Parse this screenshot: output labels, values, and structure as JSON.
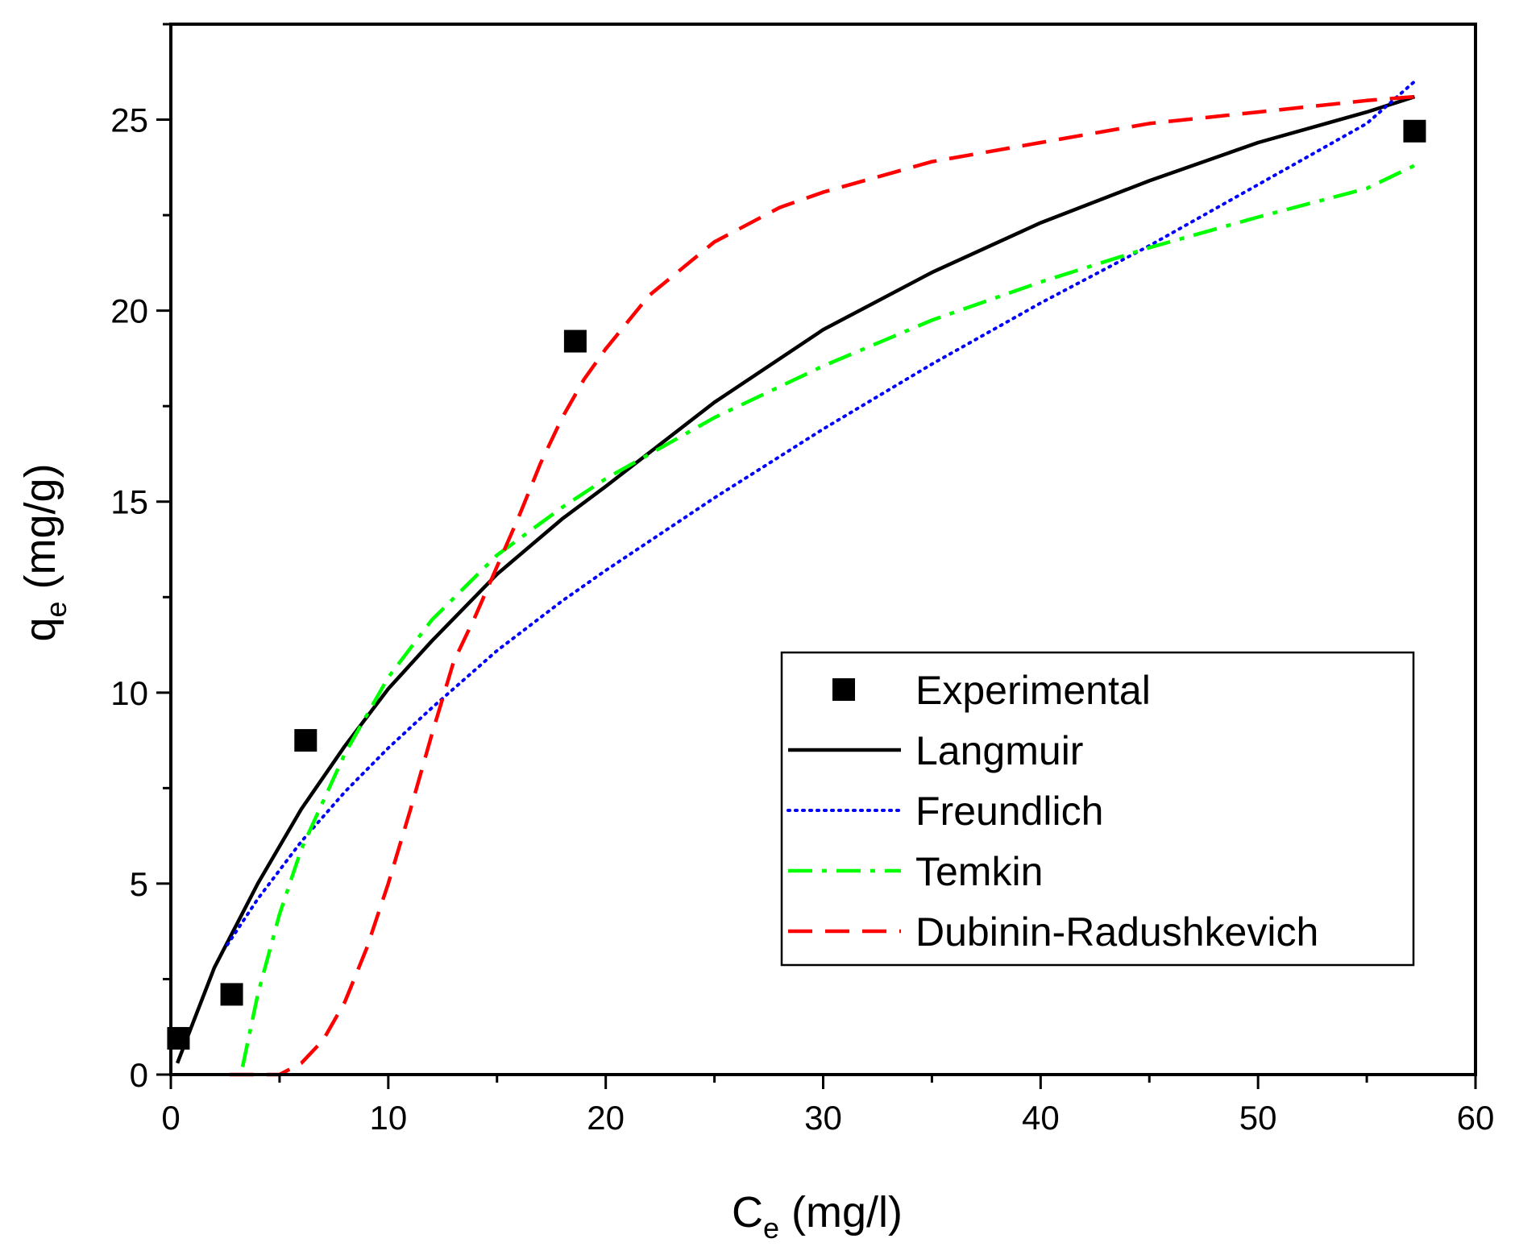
{
  "colors": {
    "experimental": "#000000",
    "langmuir": "#000000",
    "freundlich": "#0000ff",
    "temkin": "#00ff00",
    "dubinin_radushkevich": "#ff0000",
    "axes": "#000000",
    "background": "#ffffff"
  },
  "chart_data": {
    "type": "scatter",
    "title": "",
    "xlabel": {
      "main": "C",
      "sub": "e",
      "rest": " (mg/l)"
    },
    "ylabel": {
      "main": "q",
      "sub": "e",
      "rest": " (mg/g)"
    },
    "xlim": [
      0,
      60
    ],
    "ylim": [
      0,
      27.5
    ],
    "xticks": [
      0,
      10,
      20,
      30,
      40,
      50,
      60
    ],
    "xtick_labels": [
      "0",
      "10",
      "20",
      "30",
      "40",
      "50",
      "60"
    ],
    "yticks": [
      0,
      5,
      10,
      15,
      20,
      25
    ],
    "ytick_labels": [
      "0",
      "5",
      "10",
      "15",
      "20",
      "25"
    ],
    "grid": false,
    "legend_position": "bottom-right",
    "series": [
      {
        "name": "Experimental",
        "kind": "scatter",
        "marker": "square",
        "color": "#000000",
        "x": [
          0.35,
          2.8,
          6.2,
          18.6,
          57.2
        ],
        "y": [
          0.95,
          2.1,
          8.75,
          19.2,
          24.7
        ]
      },
      {
        "name": "Langmuir",
        "kind": "line",
        "dash": "solid",
        "color": "#000000",
        "x": [
          0.3,
          2,
          4,
          6,
          8,
          10,
          12,
          15,
          18,
          20,
          25,
          30,
          35,
          40,
          45,
          50,
          55,
          57.2
        ],
        "y": [
          0.3,
          2.8,
          5.0,
          6.95,
          8.6,
          10.1,
          11.35,
          13.1,
          14.55,
          15.4,
          17.6,
          19.5,
          21.0,
          22.3,
          23.4,
          24.4,
          25.2,
          25.6
        ]
      },
      {
        "name": "Freundlich",
        "kind": "line",
        "dash": "dotted",
        "color": "#0000ff",
        "x": [
          2.6,
          4,
          6,
          8,
          10,
          12,
          15,
          18,
          20,
          25,
          30,
          35,
          40,
          45,
          50,
          55,
          57.2
        ],
        "y": [
          3.4,
          4.6,
          6.1,
          7.4,
          8.55,
          9.6,
          11.1,
          12.4,
          13.2,
          15.1,
          16.9,
          18.6,
          20.2,
          21.7,
          23.3,
          24.9,
          26.0
        ]
      },
      {
        "name": "Temkin",
        "kind": "line",
        "dash": "dashdot",
        "color": "#00ff00",
        "x": [
          3.3,
          4,
          5,
          6,
          8,
          10,
          12,
          15,
          18,
          20,
          25,
          30,
          35,
          40,
          45,
          50,
          55,
          57.2
        ],
        "y": [
          0.2,
          2.1,
          4.2,
          5.9,
          8.4,
          10.4,
          11.9,
          13.6,
          14.85,
          15.6,
          17.2,
          18.55,
          19.75,
          20.75,
          21.65,
          22.45,
          23.2,
          23.8
        ]
      },
      {
        "name": "Dubinin-Radushkevich",
        "kind": "line",
        "dash": "dashed",
        "color": "#ff0000",
        "x": [
          2.7,
          4,
          5,
          6,
          7,
          8,
          9,
          10,
          11,
          12,
          13,
          14,
          15,
          16,
          17,
          18,
          19,
          20,
          22,
          25,
          28,
          30,
          35,
          40,
          45,
          50,
          55,
          57.2
        ],
        "y": [
          0,
          0,
          0,
          0.3,
          0.9,
          1.9,
          3.3,
          5.0,
          6.9,
          8.9,
          10.8,
          12.0,
          13.3,
          14.6,
          16.0,
          17.2,
          18.2,
          19.0,
          20.4,
          21.8,
          22.7,
          23.1,
          23.9,
          24.4,
          24.9,
          25.2,
          25.5,
          25.6
        ]
      }
    ]
  }
}
